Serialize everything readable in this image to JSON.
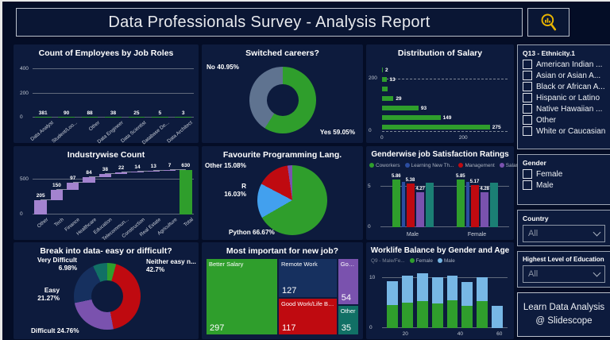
{
  "page": {
    "title": "Data Professionals Survey - Analysis Report"
  },
  "header": {
    "icon": "magnifier-chart-icon",
    "icon_color": "#e9b400"
  },
  "filters": {
    "ethnicity": {
      "title": "Q13 - Ethnicity.1",
      "options": [
        "American Indian ...",
        "Asian or Asian A...",
        "Black or African A...",
        "Hispanic or Latino",
        "Native Hawaiian ...",
        "Other",
        "White or Caucasian"
      ]
    },
    "gender": {
      "title": "Gender",
      "options": [
        "Female",
        "Male"
      ]
    },
    "country": {
      "title": "Country",
      "value": "All"
    },
    "education": {
      "title": "Highest Level of Education",
      "value": "All"
    },
    "promo": {
      "line1": "Learn Data Analysis",
      "line2": "@ Slidescope"
    }
  },
  "chart_data": [
    {
      "type": "bar",
      "title": "Count of Employees by Job Roles",
      "categories": [
        "Data Analyst",
        "Student/Loo...",
        "Other",
        "Data Engineer",
        "Data Scientist",
        "Database De...",
        "Data Architect"
      ],
      "values": [
        381,
        90,
        88,
        38,
        25,
        5,
        3
      ],
      "yticks": [
        0,
        200,
        400
      ],
      "ylim": [
        0,
        440
      ],
      "color": "#2f9e2c"
    },
    {
      "type": "donut",
      "title": "Switched careers?",
      "slices": [
        {
          "label": "Yes",
          "pct": 59.05,
          "color": "#2f9e2c",
          "display": "Yes 59.05%"
        },
        {
          "label": "No",
          "pct": 40.95,
          "color": "#5f7390",
          "display": "No 40.95%"
        }
      ]
    },
    {
      "type": "hbar",
      "title": "Distribution of Salary",
      "values": [
        2,
        13,
        15,
        29,
        93,
        149,
        275
      ],
      "value_labels": [
        "2",
        "13",
        "",
        "29",
        "93",
        "149",
        "275"
      ],
      "xticks": [
        "0",
        "200"
      ],
      "xlim": [
        0,
        320
      ],
      "yaxis_labels": [
        "200",
        "0"
      ],
      "color": "#2f9e2c"
    },
    {
      "type": "waterfall",
      "title": "Industrywise Count",
      "categories": [
        "Other",
        "Tech",
        "Finance",
        "Healthcare",
        "Education",
        "Telecommun...",
        "Construction",
        "Real Estate",
        "Agriculture",
        "Total"
      ],
      "values": [
        205,
        150,
        97,
        84,
        38,
        22,
        14,
        13,
        7
      ],
      "total": 630,
      "yticks": [
        0,
        500
      ],
      "ylim": [
        0,
        700
      ],
      "increase_color": "#a383cf",
      "total_color": "#2f9e2c"
    },
    {
      "type": "pie",
      "title": "Favourite Programming Lang.",
      "slices": [
        {
          "label": "Python",
          "pct": 66.67,
          "color": "#2f9e2c",
          "display": "Python 66.67%"
        },
        {
          "label": "R",
          "pct": 16.03,
          "color": "#42a0ee",
          "display": "R\n16.03%"
        },
        {
          "label": "Other",
          "pct": 15.08,
          "color": "#bf0a10",
          "display": "Other 15.08%"
        },
        {
          "label": "",
          "pct": 2.22,
          "color": "#7a52ae",
          "display": ""
        }
      ]
    },
    {
      "type": "cluster",
      "title": "Genderwise job Satisfaction Ratings",
      "groups": [
        "Male",
        "Female"
      ],
      "legend": [
        {
          "name": "Coworkers",
          "color": "#2f9e2c"
        },
        {
          "name": "Learning New Th...",
          "color": "#2b4da0"
        },
        {
          "name": "Management",
          "color": "#bf0a10"
        },
        {
          "name": "Salary",
          "color": "#7a52ae"
        }
      ],
      "series": [
        {
          "color": "#2f9e2c",
          "values": [
            5.86,
            5.85
          ],
          "labels": [
            "5.86",
            "5.85"
          ],
          "w": 10
        },
        {
          "color": "#2b4da0",
          "values": [
            5.5,
            5.5
          ],
          "labels": [
            "",
            ""
          ],
          "w": 4
        },
        {
          "color": "#bf0a10",
          "values": [
            5.38,
            5.17
          ],
          "labels": [
            "5.38",
            "5.17"
          ],
          "w": 10
        },
        {
          "color": "#7a52ae",
          "values": [
            4.27,
            4.28
          ],
          "labels": [
            "4.27",
            "4.28"
          ],
          "w": 10
        },
        {
          "color": "#1b7f74",
          "values": [
            5.45,
            5.45
          ],
          "labels": [
            "",
            ""
          ],
          "w": 10
        }
      ],
      "yticks": [
        0,
        5
      ],
      "ylim": [
        0,
        6.6
      ]
    },
    {
      "type": "donut",
      "title": "Break into data- easy or difficult?",
      "slices": [
        {
          "label": "",
          "pct": 4.29,
          "color": "#2f9e2c",
          "display": ""
        },
        {
          "label": "Neither easy n...",
          "pct": 42.7,
          "color": "#bf0a10",
          "display": "Neither easy n...\n42.7%"
        },
        {
          "label": "Difficult",
          "pct": 24.76,
          "color": "#7a52ae",
          "display": "Difficult 24.76%"
        },
        {
          "label": "Easy",
          "pct": 21.27,
          "color": "#16305f",
          "display": "Easy\n21.27%"
        },
        {
          "label": "Very Difficult",
          "pct": 6.98,
          "color": "#117065",
          "display": "Very Difficult\n6.98%"
        }
      ]
    },
    {
      "type": "treemap",
      "title": "Most important for new job?",
      "items": [
        {
          "label": "Better Salary",
          "value": 297,
          "color": "#2f9e2c"
        },
        {
          "label": "Remote Work",
          "value": 127,
          "color": "#16305f"
        },
        {
          "label": "Good Work/Life Bala...",
          "value": 117,
          "color": "#bf0a10"
        },
        {
          "label": "Goo...",
          "value": 54,
          "color": "#7a52ae"
        },
        {
          "label": "Other",
          "value": 35,
          "color": "#117065"
        }
      ]
    },
    {
      "type": "stacked",
      "title": "Worklife Balance by Gender and Age",
      "legend_prefix": "Q9 - Male/Fe...",
      "series": [
        {
          "name": "Female",
          "color": "#2f9e2c"
        },
        {
          "name": "Male",
          "color": "#77b7e5"
        }
      ],
      "female": [
        4.6,
        5.1,
        5.4,
        4.9,
        5.6,
        4.4,
        5.4,
        0
      ],
      "male": [
        4.9,
        5.4,
        5.6,
        5.4,
        5.0,
        4.8,
        4.9,
        4.5
      ],
      "xticks": [
        "20",
        "40",
        "60"
      ],
      "yticks": [
        0,
        10
      ],
      "ylim": [
        0,
        11.5
      ]
    }
  ]
}
